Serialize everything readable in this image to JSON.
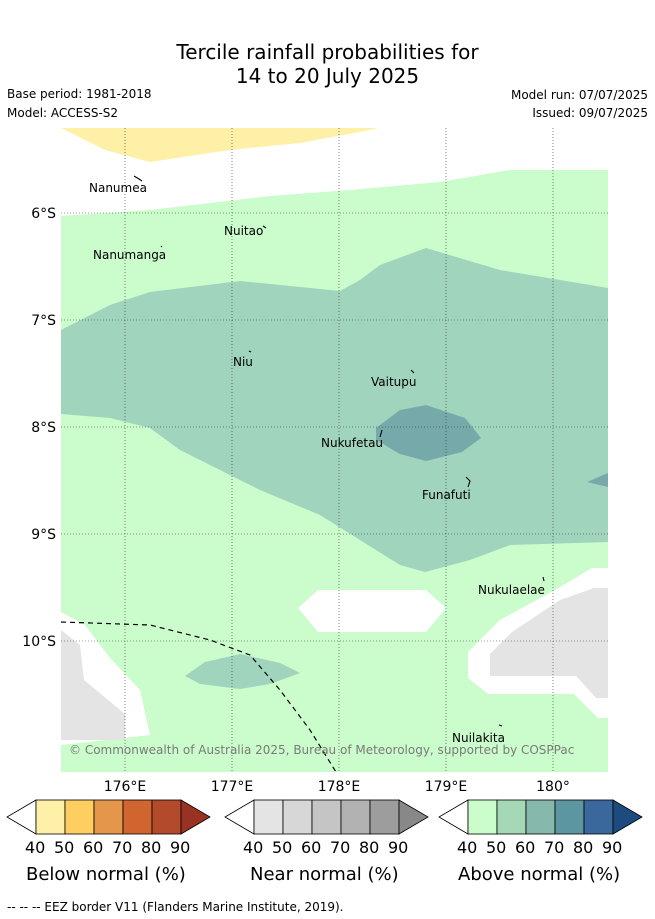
{
  "header": {
    "title_line1": "Tercile rainfall probabilities for",
    "title_line2": "14 to 20 July 2025",
    "base_period": "Base period: 1981-2018",
    "model": "Model: ACCESS-S2",
    "model_run": "Model run: 07/07/2025",
    "issued": "Issued: 09/07/2025"
  },
  "map": {
    "islands": [
      "Nanumea",
      "Nuitao",
      "Nanumanga",
      "Niu",
      "Vaitupu",
      "Nukufetau",
      "Funafuti",
      "Nukulaelae",
      "Nuilakita"
    ],
    "lat_labels": [
      "6°S",
      "7°S",
      "8°S",
      "9°S",
      "10°S"
    ],
    "lon_labels": [
      "176°E",
      "177°E",
      "178°E",
      "179°E",
      "180°"
    ],
    "copyright": "© Commonwealth of Australia 2025, Bureau of Meteorology, supported by COSPPac"
  },
  "colorbars": [
    {
      "title": "Below normal (%)",
      "ticks": [
        "40",
        "50",
        "60",
        "70",
        "80",
        "90"
      ],
      "colors": [
        "#fff0a8",
        "#fecf60",
        "#e4964a",
        "#d1652f",
        "#b24a2b",
        "#9a3223"
      ]
    },
    {
      "title": "Near normal (%)",
      "ticks": [
        "40",
        "50",
        "60",
        "70",
        "80",
        "90"
      ],
      "colors": [
        "#e4e4e4",
        "#d7d7d7",
        "#c5c5c5",
        "#b2b2b2",
        "#9d9d9d",
        "#888888"
      ]
    },
    {
      "title": "Above normal (%)",
      "ticks": [
        "40",
        "50",
        "60",
        "70",
        "80",
        "90"
      ],
      "colors": [
        "#cbfccb",
        "#a5d8b6",
        "#86b8ab",
        "#5c96a0",
        "#3a689c",
        "#1d4b80"
      ]
    }
  ],
  "footer": {
    "legend": "-- -- -- EEZ border V11 (Flanders Marine Institute, 2019)."
  }
}
